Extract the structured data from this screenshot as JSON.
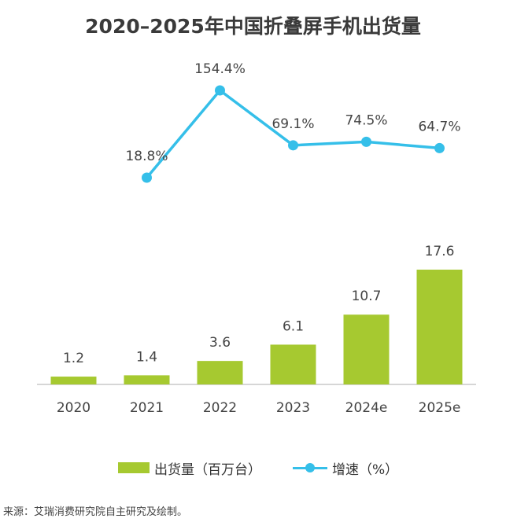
{
  "title": "2020–2025年中国折叠屏手机出货量",
  "source": "来源：艾瑞消费研究院自主研究及绘制。",
  "legend": {
    "bar_label": "出货量（百万台）",
    "line_label": "增速（%）"
  },
  "colors": {
    "bar": "#a6c930",
    "line": "#35bfe9",
    "title": "#3a3a3a",
    "label": "#444444",
    "axis": "#c8c8c8"
  },
  "chart_data": {
    "type": "bar",
    "categories": [
      "2020",
      "2021",
      "2022",
      "2023",
      "2024e",
      "2025e"
    ],
    "series": [
      {
        "name": "出货量（百万台）",
        "type": "bar",
        "values": [
          1.2,
          1.4,
          3.6,
          6.1,
          10.7,
          17.6
        ],
        "labels": [
          "1.2",
          "1.4",
          "3.6",
          "6.1",
          "10.7",
          "17.6"
        ]
      },
      {
        "name": "增速（%）",
        "type": "line",
        "values": [
          null,
          18.8,
          154.4,
          69.1,
          74.5,
          64.7
        ],
        "labels": [
          "",
          "18.8%",
          "154.4%",
          "69.1%",
          "74.5%",
          "64.7%"
        ]
      }
    ],
    "title": "2020–2025年中国折叠屏手机出货量",
    "legend_position": "bottom",
    "grid": false
  }
}
